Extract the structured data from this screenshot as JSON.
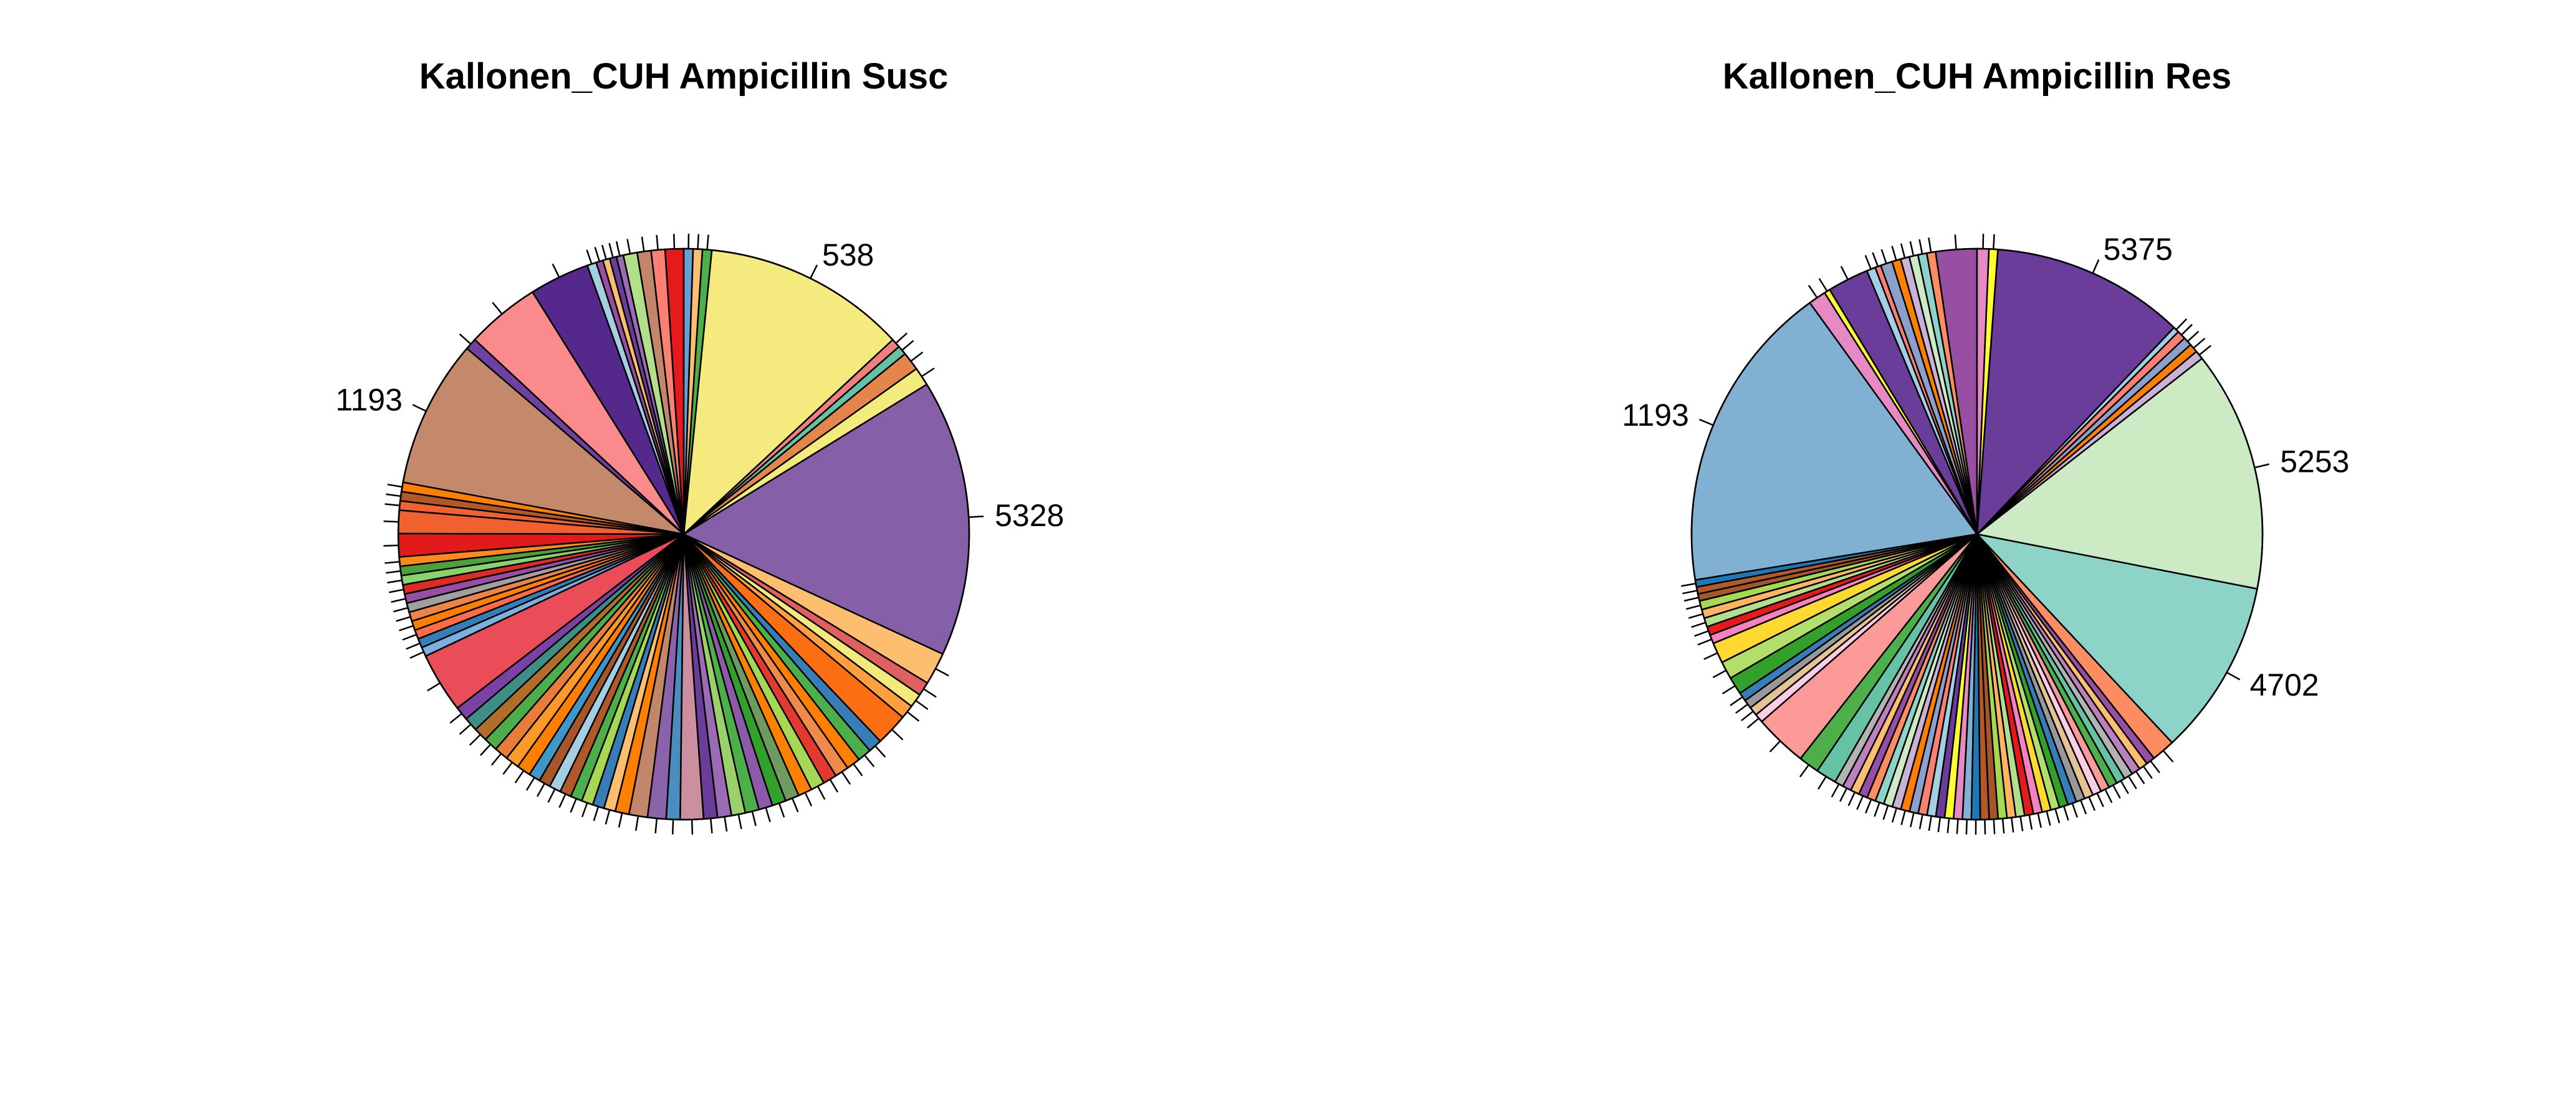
{
  "chart_data": [
    {
      "type": "pie",
      "title": "Kallonen_CUH Ampicillin Susc",
      "start_angle_deg": 90,
      "direction": "counterclockwise",
      "labels": [
        "",
        "",
        "",
        "",
        "",
        "",
        "",
        "",
        "",
        "",
        "",
        "",
        "1193",
        "",
        "",
        "",
        "",
        "",
        "",
        "",
        "",
        "",
        "",
        "",
        "",
        "",
        "",
        "",
        "",
        "",
        "",
        "",
        "",
        "",
        "",
        "",
        "",
        "",
        "",
        "",
        "",
        "",
        "",
        "",
        "",
        "",
        "",
        "",
        "",
        "",
        "",
        "",
        "",
        "",
        "",
        "",
        "",
        "",
        "",
        "",
        "",
        "",
        "",
        "",
        "",
        "",
        "",
        "",
        "",
        "5328",
        "",
        "",
        "",
        "",
        "538",
        "",
        "",
        ""
      ],
      "values": [
        4,
        3,
        3,
        3,
        1.5,
        1.5,
        1.5,
        1.5,
        2,
        13,
        16,
        2.5,
        32,
        2,
        2,
        2,
        5,
        5,
        2,
        2,
        2,
        2,
        2,
        2,
        2,
        2,
        2,
        2,
        2,
        13,
        3,
        3,
        3,
        3,
        3,
        3,
        3,
        2.5,
        2.5,
        2.5,
        2.5,
        2.5,
        2.5,
        2.5,
        2.5,
        3,
        4,
        4,
        3,
        5,
        3,
        3,
        3,
        3,
        3,
        3,
        3,
        3,
        3,
        3,
        3,
        3,
        3,
        3,
        7,
        3,
        3,
        3,
        7,
        60,
        4,
        4,
        2,
        2,
        44,
        2,
        2,
        2
      ],
      "colors": [
        "#e41a1c",
        "#fb8072",
        "#c2876b",
        "#b2df8a",
        "#9b6bb4",
        "#6a3d9a",
        "#fdbf6f",
        "#984ea3",
        "#a6cee3",
        "#55288b",
        "#fb8a8c",
        "#6e409f",
        "#c4896b",
        "#ff7f00",
        "#b15928",
        "#f0622e",
        "#f0612f",
        "#e31a1c",
        "#ff8a1b",
        "#4da03b",
        "#8ad26b",
        "#df2b26",
        "#984ea3",
        "#a0a0a0",
        "#ed8345",
        "#ff7f00",
        "#fd6c44",
        "#377eb8",
        "#7bb0e0",
        "#ea4c58",
        "#7b42a5",
        "#3e8e86",
        "#b16e28",
        "#4dad4a",
        "#e87d3a",
        "#ff9a2a",
        "#ff7f00",
        "#3f97c8",
        "#a65628",
        "#a6cee3",
        "#b15928",
        "#4daf4a",
        "#a6d854",
        "#377eb8",
        "#fdbf6f",
        "#ff7f00",
        "#c2876b",
        "#8b63aa",
        "#4b8dbf",
        "#cc8fa0",
        "#6a3d9a",
        "#9b6bb4",
        "#9bd16b",
        "#4daf4a",
        "#8c5aa8",
        "#33a02c",
        "#6f9b5f",
        "#ff7f00",
        "#a6d854",
        "#e23a2e",
        "#f08a4a",
        "#ff7f00",
        "#4daf4a",
        "#377eb8",
        "#fc6e12",
        "#ff9f40",
        "#f2ea7a",
        "#e06060",
        "#fdbf6f",
        "#8560a8",
        "#f3eb7c",
        "#e4854b",
        "#66c2a5",
        "#f08080",
        "#f4ea7d",
        "#4daf4a",
        "#fdbf6f",
        "#6a9fd4"
      ]
    },
    {
      "type": "pie",
      "title": "Kallonen_CUH Ampicillin Res",
      "start_angle_deg": 90,
      "direction": "counterclockwise",
      "labels": [
        "",
        "",
        "",
        "",
        "",
        "",
        "",
        "",
        "",
        "",
        "",
        "",
        "1193",
        "",
        "",
        "",
        "",
        "",
        "",
        "",
        "",
        "",
        "",
        "",
        "",
        "",
        "",
        "",
        "",
        "",
        "",
        "",
        "",
        "",
        "",
        "",
        "",
        "",
        "",
        "",
        "",
        "",
        "",
        "",
        "",
        "",
        "",
        "",
        "",
        "",
        "",
        "",
        "",
        "",
        "",
        "",
        "",
        "",
        "",
        "",
        "",
        "",
        "",
        "",
        "",
        "",
        "",
        "",
        "",
        "",
        "4702",
        "5253",
        "",
        "",
        "",
        "",
        "",
        "5375",
        "",
        ""
      ],
      "values": [
        7,
        1.5,
        1.5,
        1.5,
        1.5,
        1.5,
        2,
        1,
        1.5,
        7,
        1,
        3,
        53,
        1.2,
        1.2,
        1.2,
        1.5,
        1.5,
        1.5,
        1.5,
        1.5,
        3.5,
        3,
        3,
        1.5,
        1.5,
        1.5,
        1.5,
        9,
        3.5,
        3.5,
        1.5,
        1.5,
        1.5,
        1.5,
        1.5,
        1.5,
        1.5,
        1.5,
        1.5,
        1.5,
        1.5,
        1.5,
        1.5,
        1.5,
        1.5,
        1.5,
        1.5,
        1.5,
        1.5,
        1.5,
        1.5,
        1.5,
        1.5,
        1.5,
        1.5,
        1.5,
        1.5,
        1.5,
        1.5,
        1.5,
        1.5,
        1.5,
        1.5,
        1.5,
        1.5,
        1.5,
        1.5,
        1.5,
        4,
        30,
        41,
        1.5,
        1.5,
        1.5,
        1.5,
        1,
        33,
        1.5,
        2
      ]
    }
  ]
}
